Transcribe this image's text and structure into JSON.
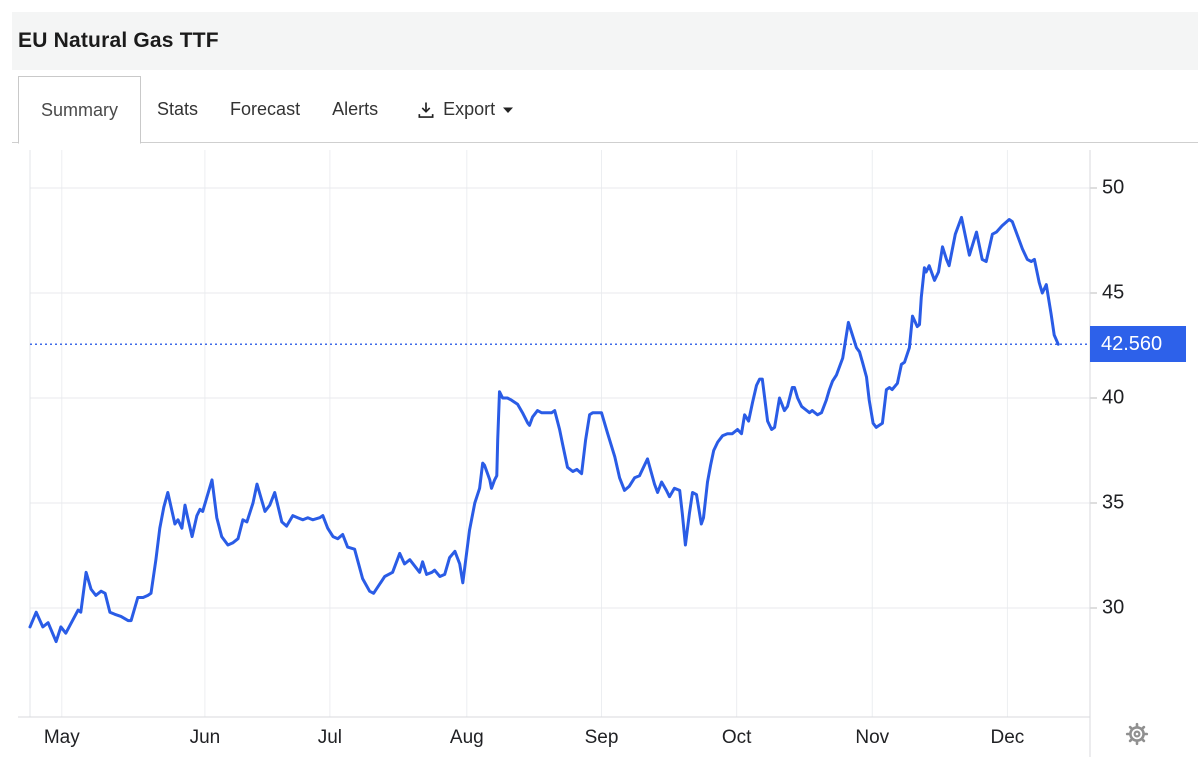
{
  "header": {
    "title": "EU Natural Gas TTF"
  },
  "tabs": {
    "items": [
      {
        "label": "Summary",
        "active": true
      },
      {
        "label": "Stats",
        "active": false
      },
      {
        "label": "Forecast",
        "active": false
      },
      {
        "label": "Alerts",
        "active": false
      }
    ],
    "export_label": "Export"
  },
  "colors": {
    "line": "#2a5ce6",
    "badge_bg": "#2d61ea",
    "dotted_line": "#3f6ae8",
    "grid_h": "#e8eaed",
    "grid_v": "#eceef1",
    "axis_border": "#d8dadd",
    "tick": "#bdbdbd",
    "gear": "#909090"
  },
  "chart_data": {
    "type": "line",
    "title": "EU Natural Gas TTF price",
    "series_name": "EU Natural Gas TTF",
    "y_ticks": [
      50,
      45,
      40,
      35,
      30
    ],
    "y_range": [
      24.8,
      51.8
    ],
    "x_range_days": [
      0,
      240
    ],
    "x_ticks": [
      {
        "label": "May",
        "day": 7.2
      },
      {
        "label": "Jun",
        "day": 39.6
      },
      {
        "label": "Jul",
        "day": 67.9
      },
      {
        "label": "Aug",
        "day": 98.9
      },
      {
        "label": "Sep",
        "day": 129.4
      },
      {
        "label": "Oct",
        "day": 160.0
      },
      {
        "label": "Nov",
        "day": 190.7
      },
      {
        "label": "Dec",
        "day": 221.3
      }
    ],
    "last_price": "42.560",
    "last_price_value": 42.56,
    "grid": true,
    "legend": "none",
    "y_axis_side": "right",
    "points": [
      [
        0,
        29.1
      ],
      [
        1.4,
        29.8
      ],
      [
        2.9,
        29.1
      ],
      [
        4.1,
        29.3
      ],
      [
        5.9,
        28.4
      ],
      [
        7,
        29.1
      ],
      [
        8.1,
        28.8
      ],
      [
        10.9,
        29.9
      ],
      [
        11.5,
        29.8
      ],
      [
        12.7,
        31.7
      ],
      [
        13.8,
        30.9
      ],
      [
        14.9,
        30.6
      ],
      [
        16.1,
        30.8
      ],
      [
        17,
        30.7
      ],
      [
        18.1,
        29.8
      ],
      [
        19.2,
        29.7
      ],
      [
        20.6,
        29.6
      ],
      [
        22.2,
        29.4
      ],
      [
        22.9,
        29.4
      ],
      [
        24.4,
        30.5
      ],
      [
        25.6,
        30.5
      ],
      [
        26.7,
        30.6
      ],
      [
        27.4,
        30.7
      ],
      [
        28.5,
        32.3
      ],
      [
        29.4,
        33.8
      ],
      [
        30.3,
        34.8
      ],
      [
        31.2,
        35.5
      ],
      [
        32.8,
        34
      ],
      [
        33.5,
        34.2
      ],
      [
        34.4,
        33.8
      ],
      [
        35.1,
        34.9
      ],
      [
        35.7,
        34.3
      ],
      [
        36.7,
        33.4
      ],
      [
        37.8,
        34.4
      ],
      [
        38.5,
        34.7
      ],
      [
        39.1,
        34.6
      ],
      [
        41.2,
        36.1
      ],
      [
        42.3,
        34.3
      ],
      [
        43.4,
        33.4
      ],
      [
        44.8,
        33
      ],
      [
        45.9,
        33.1
      ],
      [
        47.1,
        33.3
      ],
      [
        48.2,
        34.2
      ],
      [
        49.1,
        34.1
      ],
      [
        50.5,
        35
      ],
      [
        51.4,
        35.9
      ],
      [
        52.5,
        35.1
      ],
      [
        53.2,
        34.6
      ],
      [
        54.3,
        34.9
      ],
      [
        55.4,
        35.5
      ],
      [
        57,
        34.1
      ],
      [
        58.1,
        33.9
      ],
      [
        59.5,
        34.4
      ],
      [
        60.6,
        34.3
      ],
      [
        61.8,
        34.2
      ],
      [
        62.9,
        34.3
      ],
      [
        64,
        34.2
      ],
      [
        65.6,
        34.3
      ],
      [
        66.3,
        34.4
      ],
      [
        67.4,
        33.8
      ],
      [
        68.6,
        33.4
      ],
      [
        69.7,
        33.3
      ],
      [
        70.8,
        33.5
      ],
      [
        71.9,
        32.9
      ],
      [
        73.5,
        32.8
      ],
      [
        75.3,
        31.4
      ],
      [
        76.9,
        30.8
      ],
      [
        77.8,
        30.7
      ],
      [
        80.3,
        31.5
      ],
      [
        82.1,
        31.7
      ],
      [
        83.7,
        32.6
      ],
      [
        84.8,
        32.1
      ],
      [
        86,
        32.3
      ],
      [
        88.2,
        31.7
      ],
      [
        88.9,
        32.2
      ],
      [
        89.8,
        31.6
      ],
      [
        91,
        31.7
      ],
      [
        91.6,
        31.8
      ],
      [
        92.8,
        31.5
      ],
      [
        93.9,
        31.6
      ],
      [
        95,
        32.4
      ],
      [
        96.2,
        32.7
      ],
      [
        97.3,
        32.1
      ],
      [
        98,
        31.2
      ],
      [
        99.5,
        33.7
      ],
      [
        100.7,
        35
      ],
      [
        101.8,
        35.7
      ],
      [
        102.5,
        36.9
      ],
      [
        102.9,
        36.8
      ],
      [
        104.1,
        36.1
      ],
      [
        104.5,
        35.7
      ],
      [
        105.2,
        36.1
      ],
      [
        105.7,
        36.3
      ],
      [
        105.9,
        38
      ],
      [
        106.3,
        40.3
      ],
      [
        107,
        40
      ],
      [
        108.1,
        40
      ],
      [
        109,
        39.9
      ],
      [
        110.4,
        39.7
      ],
      [
        111.5,
        39.3
      ],
      [
        112.7,
        38.8
      ],
      [
        113.1,
        38.7
      ],
      [
        113.8,
        39.1
      ],
      [
        114.9,
        39.4
      ],
      [
        115.8,
        39.3
      ],
      [
        117,
        39.3
      ],
      [
        118.1,
        39.3
      ],
      [
        118.8,
        39.4
      ],
      [
        119.9,
        38.5
      ],
      [
        120.6,
        37.8
      ],
      [
        121.7,
        36.7
      ],
      [
        122.9,
        36.5
      ],
      [
        123.8,
        36.6
      ],
      [
        124.9,
        36.4
      ],
      [
        125.8,
        38
      ],
      [
        126.7,
        39.2
      ],
      [
        127.4,
        39.3
      ],
      [
        128.5,
        39.3
      ],
      [
        129.4,
        39.3
      ],
      [
        130.8,
        38.3
      ],
      [
        132.4,
        37.2
      ],
      [
        133.5,
        36.2
      ],
      [
        134.6,
        35.6
      ],
      [
        135.7,
        35.8
      ],
      [
        136.9,
        36.2
      ],
      [
        138,
        36.3
      ],
      [
        139.8,
        37.1
      ],
      [
        141.4,
        35.9
      ],
      [
        142.1,
        35.5
      ],
      [
        143,
        36
      ],
      [
        144.1,
        35.6
      ],
      [
        144.8,
        35.3
      ],
      [
        145.9,
        35.7
      ],
      [
        147.1,
        35.6
      ],
      [
        147.7,
        34.5
      ],
      [
        148.4,
        33
      ],
      [
        149.3,
        34.5
      ],
      [
        150,
        35.5
      ],
      [
        150.9,
        35.4
      ],
      [
        152,
        34
      ],
      [
        152.5,
        34.3
      ],
      [
        153.4,
        36
      ],
      [
        154.1,
        36.8
      ],
      [
        154.8,
        37.5
      ],
      [
        155.7,
        37.9
      ],
      [
        156.8,
        38.2
      ],
      [
        157.9,
        38.3
      ],
      [
        159,
        38.3
      ],
      [
        160.2,
        38.5
      ],
      [
        161.1,
        38.3
      ],
      [
        161.8,
        39.2
      ],
      [
        162.7,
        38.9
      ],
      [
        163.6,
        39.8
      ],
      [
        164.5,
        40.6
      ],
      [
        165.2,
        40.9
      ],
      [
        165.8,
        40.9
      ],
      [
        167,
        38.9
      ],
      [
        167.9,
        38.5
      ],
      [
        168.6,
        38.6
      ],
      [
        169.7,
        40
      ],
      [
        170.8,
        39.4
      ],
      [
        171.5,
        39.6
      ],
      [
        172.6,
        40.5
      ],
      [
        173.1,
        40.5
      ],
      [
        173.8,
        40
      ],
      [
        174.7,
        39.6
      ],
      [
        175.3,
        39.5
      ],
      [
        176.5,
        39.3
      ],
      [
        177.1,
        39.4
      ],
      [
        178.3,
        39.2
      ],
      [
        179.2,
        39.3
      ],
      [
        180.3,
        39.9
      ],
      [
        181,
        40.4
      ],
      [
        181.7,
        40.8
      ],
      [
        182.6,
        41.1
      ],
      [
        183.3,
        41.5
      ],
      [
        184,
        41.9
      ],
      [
        185.3,
        43.6
      ],
      [
        186.2,
        43
      ],
      [
        187.1,
        42.4
      ],
      [
        187.8,
        42.2
      ],
      [
        188.5,
        41.7
      ],
      [
        189.4,
        41
      ],
      [
        190,
        39.9
      ],
      [
        190.9,
        38.8
      ],
      [
        191.6,
        38.6
      ],
      [
        192.3,
        38.7
      ],
      [
        193,
        38.8
      ],
      [
        193.9,
        40.4
      ],
      [
        194.6,
        40.5
      ],
      [
        195.2,
        40.4
      ],
      [
        196.4,
        40.7
      ],
      [
        197.3,
        41.6
      ],
      [
        198,
        41.7
      ],
      [
        199.1,
        42.4
      ],
      [
        199.8,
        43.9
      ],
      [
        200.9,
        43.4
      ],
      [
        201.4,
        43.5
      ],
      [
        201.8,
        44.8
      ],
      [
        202.5,
        46.2
      ],
      [
        202.9,
        46
      ],
      [
        203.6,
        46.3
      ],
      [
        204.8,
        45.6
      ],
      [
        205.7,
        46
      ],
      [
        206.6,
        47.2
      ],
      [
        207.5,
        46.6
      ],
      [
        208.1,
        46.3
      ],
      [
        209.5,
        47.8
      ],
      [
        210.9,
        48.6
      ],
      [
        212,
        47.5
      ],
      [
        212.7,
        46.8
      ],
      [
        214.3,
        47.9
      ],
      [
        215.6,
        46.6
      ],
      [
        216.5,
        46.5
      ],
      [
        217.9,
        47.8
      ],
      [
        218.8,
        47.9
      ],
      [
        220.1,
        48.2
      ],
      [
        221.7,
        48.5
      ],
      [
        222.4,
        48.4
      ],
      [
        224,
        47.5
      ],
      [
        224.7,
        47.1
      ],
      [
        225.8,
        46.6
      ],
      [
        226.7,
        46.5
      ],
      [
        227.4,
        46.6
      ],
      [
        228.5,
        45.5
      ],
      [
        229.2,
        45
      ],
      [
        230.1,
        45.4
      ],
      [
        231.2,
        44
      ],
      [
        231.9,
        43
      ],
      [
        232.8,
        42.56
      ]
    ]
  }
}
